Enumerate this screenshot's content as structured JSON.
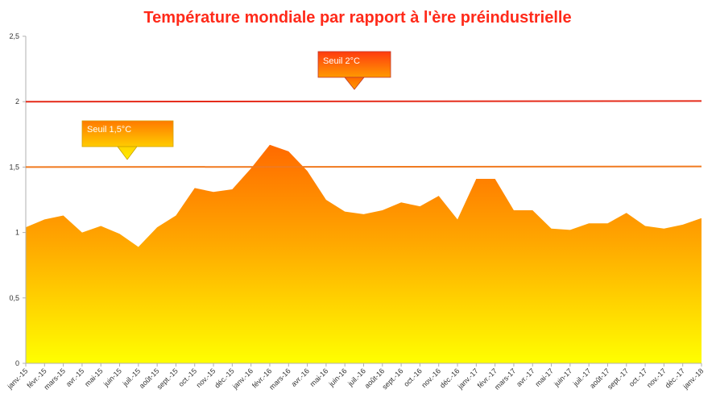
{
  "chart_data": {
    "type": "area",
    "title": "Température mondiale par rapport à l'ère préindustrielle",
    "xlabel": "",
    "ylabel": "",
    "ylim": [
      0,
      2.5
    ],
    "y_ticks": [
      "0",
      "0,5",
      "1",
      "1,5",
      "2",
      "2,5"
    ],
    "grid": false,
    "categories": [
      "janv.-15",
      "févr.-15",
      "mars-15",
      "avr.-15",
      "mai-15",
      "juin-15",
      "juil.-15",
      "août-15",
      "sept.-15",
      "oct.-15",
      "nov.-15",
      "déc.-15",
      "janv.-16",
      "févr.-16",
      "mars-16",
      "avr.-16",
      "mai-16",
      "juin-16",
      "juil.-16",
      "août-16",
      "sept.-16",
      "oct.-16",
      "nov.-16",
      "déc.-16",
      "janv.-17",
      "févr.-17",
      "mars-17",
      "avr.-17",
      "mai-17",
      "juin-17",
      "juil.-17",
      "août-17",
      "sept.-17",
      "oct.-17",
      "nov.-17",
      "déc.-17",
      "janv.-18"
    ],
    "series": [
      {
        "values": [
          1.04,
          1.1,
          1.13,
          1.0,
          1.05,
          0.99,
          0.89,
          1.04,
          1.13,
          1.34,
          1.31,
          1.33,
          1.49,
          1.67,
          1.62,
          1.47,
          1.25,
          1.16,
          1.14,
          1.17,
          1.23,
          1.2,
          1.28,
          1.1,
          1.41,
          1.41,
          1.17,
          1.17,
          1.03,
          1.02,
          1.07,
          1.07,
          1.15,
          1.05,
          1.03,
          1.06,
          1.11
        ]
      }
    ],
    "thresholds": [
      {
        "label": "Seuil 2°C",
        "value": 2.0,
        "color": "#e52b1a"
      },
      {
        "label": "Seuil 1,5°C",
        "value": 1.5,
        "color": "#f07a20"
      }
    ],
    "colors": {
      "area_top": "#ff6a00",
      "area_bottom": "#ffff00",
      "title": "#ff2a1a"
    }
  }
}
